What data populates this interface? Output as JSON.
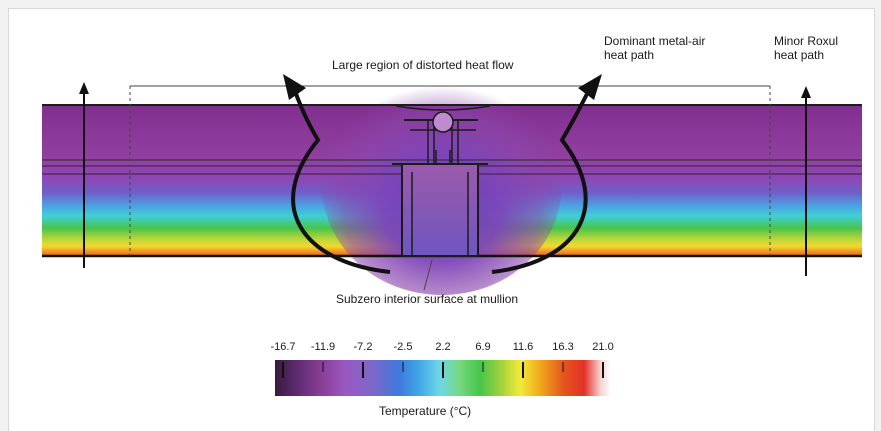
{
  "annotations": {
    "distorted_region": "Large region of distorted heat flow",
    "dominant_line1": "Dominant metal-air",
    "dominant_line2": "heat path",
    "minor_line1": "Minor Roxul",
    "minor_line2": "heat path",
    "subzero": "Subzero interior surface at mullion"
  },
  "legend": {
    "title": "Temperature (°C)",
    "ticks": [
      "-16.7",
      "-11.9",
      "-7.2",
      "-2.5",
      "2.2",
      "6.9",
      "11.6",
      "16.3",
      "21.0"
    ],
    "colors": [
      "#3a1a3f",
      "#5a2a6c",
      "#8a3f97",
      "#9a59c2",
      "#7c67c9",
      "#5b6bd4",
      "#3f79de",
      "#41a8e6",
      "#6fd7e7",
      "#76d87f",
      "#47c44a",
      "#9ed13e",
      "#f3ea37",
      "#f0a81d",
      "#e4541e",
      "#e23127",
      "#f6d5d5",
      "#ffffff"
    ]
  }
}
